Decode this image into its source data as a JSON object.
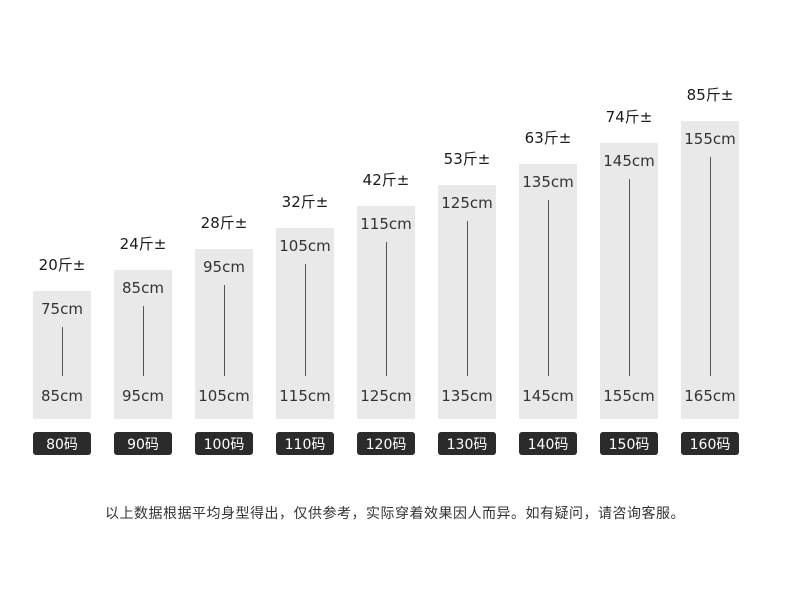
{
  "chart_data": {
    "type": "bar",
    "title": "",
    "categories": [
      "80码",
      "90码",
      "100码",
      "110码",
      "120码",
      "130码",
      "140码",
      "150码",
      "160码"
    ],
    "series": [
      {
        "name": "height_min_cm",
        "values": [
          75,
          85,
          95,
          105,
          115,
          125,
          135,
          145,
          155
        ]
      },
      {
        "name": "height_max_cm",
        "values": [
          85,
          95,
          105,
          115,
          125,
          135,
          145,
          155,
          165
        ]
      },
      {
        "name": "weight_jin",
        "values": [
          20,
          24,
          28,
          32,
          42,
          53,
          63,
          74,
          85
        ]
      }
    ],
    "sizes": [
      {
        "size": "80码",
        "weight": "20斤±",
        "height_min": "75cm",
        "height_max": "85cm",
        "height_max_cm": 85
      },
      {
        "size": "90码",
        "weight": "24斤±",
        "height_min": "85cm",
        "height_max": "95cm",
        "height_max_cm": 95
      },
      {
        "size": "100码",
        "weight": "28斤±",
        "height_min": "95cm",
        "height_max": "105cm",
        "height_max_cm": 105
      },
      {
        "size": "110码",
        "weight": "32斤±",
        "height_min": "105cm",
        "height_max": "115cm",
        "height_max_cm": 115
      },
      {
        "size": "120码",
        "weight": "42斤±",
        "height_min": "115cm",
        "height_max": "125cm",
        "height_max_cm": 125
      },
      {
        "size": "130码",
        "weight": "53斤±",
        "height_min": "125cm",
        "height_max": "135cm",
        "height_max_cm": 135
      },
      {
        "size": "140码",
        "weight": "63斤±",
        "height_min": "135cm",
        "height_max": "145cm",
        "height_max_cm": 145
      },
      {
        "size": "150码",
        "weight": "74斤±",
        "height_min": "145cm",
        "height_max": "155cm",
        "height_max_cm": 155
      },
      {
        "size": "160码",
        "weight": "85斤±",
        "height_min": "155cm",
        "height_max": "165cm",
        "height_max_cm": 165
      }
    ],
    "note": "以上数据根据平均身型得出，仅供参考，实际穿着效果因人而异。如有疑问，请咨询客服。",
    "legend": "none",
    "grid": false,
    "layout": "size-columns, baseline-aligned, increasing height left to right"
  },
  "colors": {
    "background": "#ffffff",
    "bar": "#e9e9e9",
    "range_line": "#555555",
    "badge_bg": "#2b2b2b",
    "badge_text": "#ffffff",
    "text": "#333333"
  }
}
